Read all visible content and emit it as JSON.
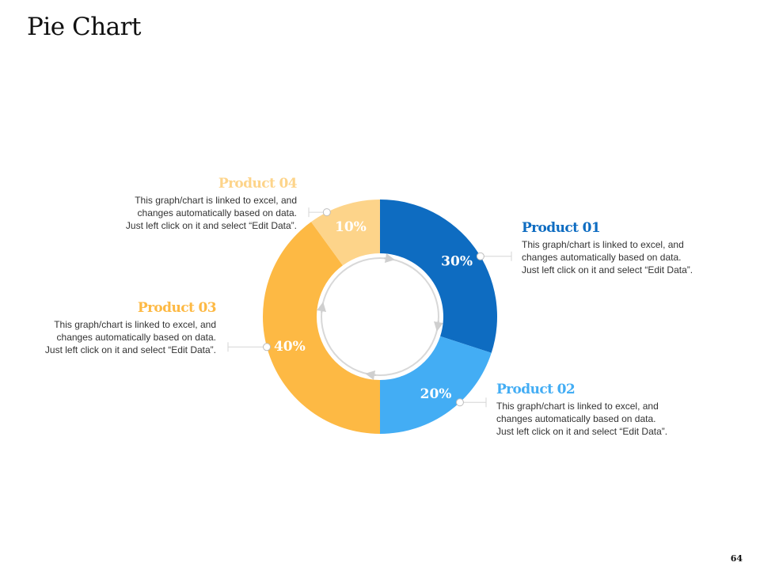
{
  "title": "Pie Chart",
  "page_number": "64",
  "colors": {
    "product_01": "#0e6cc1",
    "product_02": "#43adf4",
    "product_03": "#fdb944",
    "product_04": "#fdd48a",
    "connector": "#d6d6d6"
  },
  "products": [
    {
      "name": "Product 01",
      "description": [
        "This graph/chart is linked to excel, and",
        "changes automatically based on data.",
        "Just left click on it and select “Edit Data”."
      ]
    },
    {
      "name": "Product 02",
      "description": [
        "This graph/chart is linked to excel, and",
        "changes automatically based on data.",
        "Just left click on it and select “Edit Data”."
      ]
    },
    {
      "name": "Product 03",
      "description": [
        "This graph/chart is linked to excel, and",
        "changes automatically based on data.",
        "Just left click on it and select “Edit Data”."
      ]
    },
    {
      "name": "Product 04",
      "description": [
        "This graph/chart is linked to excel, and",
        "changes automatically based on data.",
        "Just left click on it and select “Edit Data”."
      ]
    }
  ],
  "chart_data": {
    "type": "pie",
    "variant": "donut",
    "title": "Pie Chart",
    "categories": [
      "Product 01",
      "Product 02",
      "Product 03",
      "Product 04"
    ],
    "values": [
      30,
      20,
      40,
      10
    ],
    "value_labels": [
      "30%",
      "20%",
      "40%",
      "10%"
    ],
    "unit": "%",
    "start_angle_deg": 0,
    "direction": "clockwise",
    "legend": "callouts"
  }
}
